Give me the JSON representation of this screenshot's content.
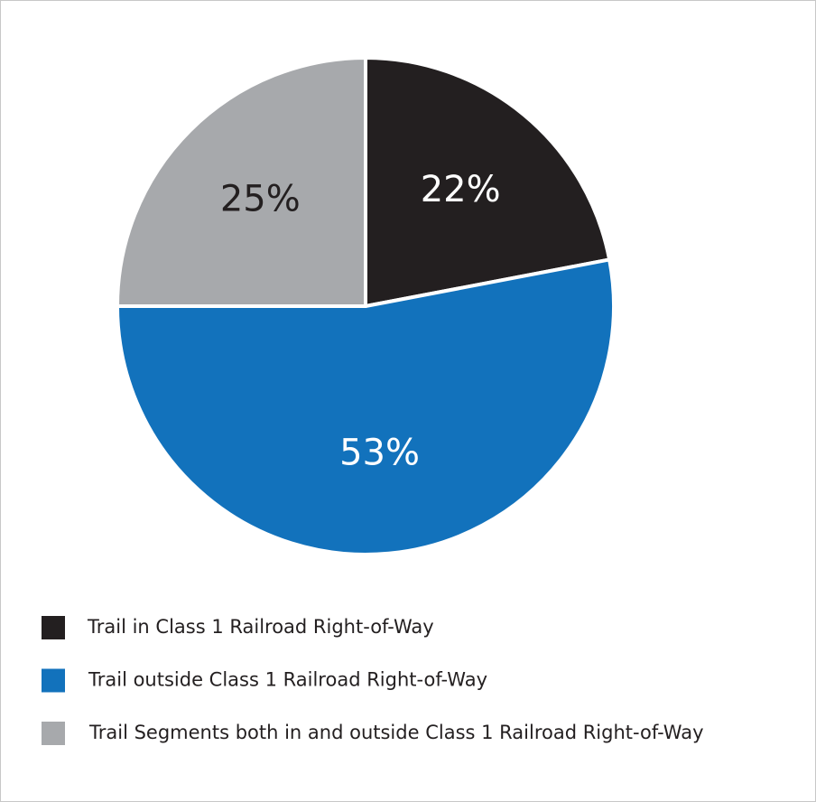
{
  "chart_data": {
    "type": "pie",
    "categories": [
      "Trail in Class 1 Railroad Right-of-Way",
      "Trail outside Class 1 Railroad Right-of-Way",
      "Trail Segments both in and outside Class 1 Railroad Right-of-Way"
    ],
    "values": [
      22,
      53,
      25
    ],
    "value_labels": [
      "22%",
      "53%",
      "25%"
    ],
    "colors": [
      "#231f20",
      "#1272bc",
      "#a7a9ac"
    ],
    "legend": "bottom"
  }
}
